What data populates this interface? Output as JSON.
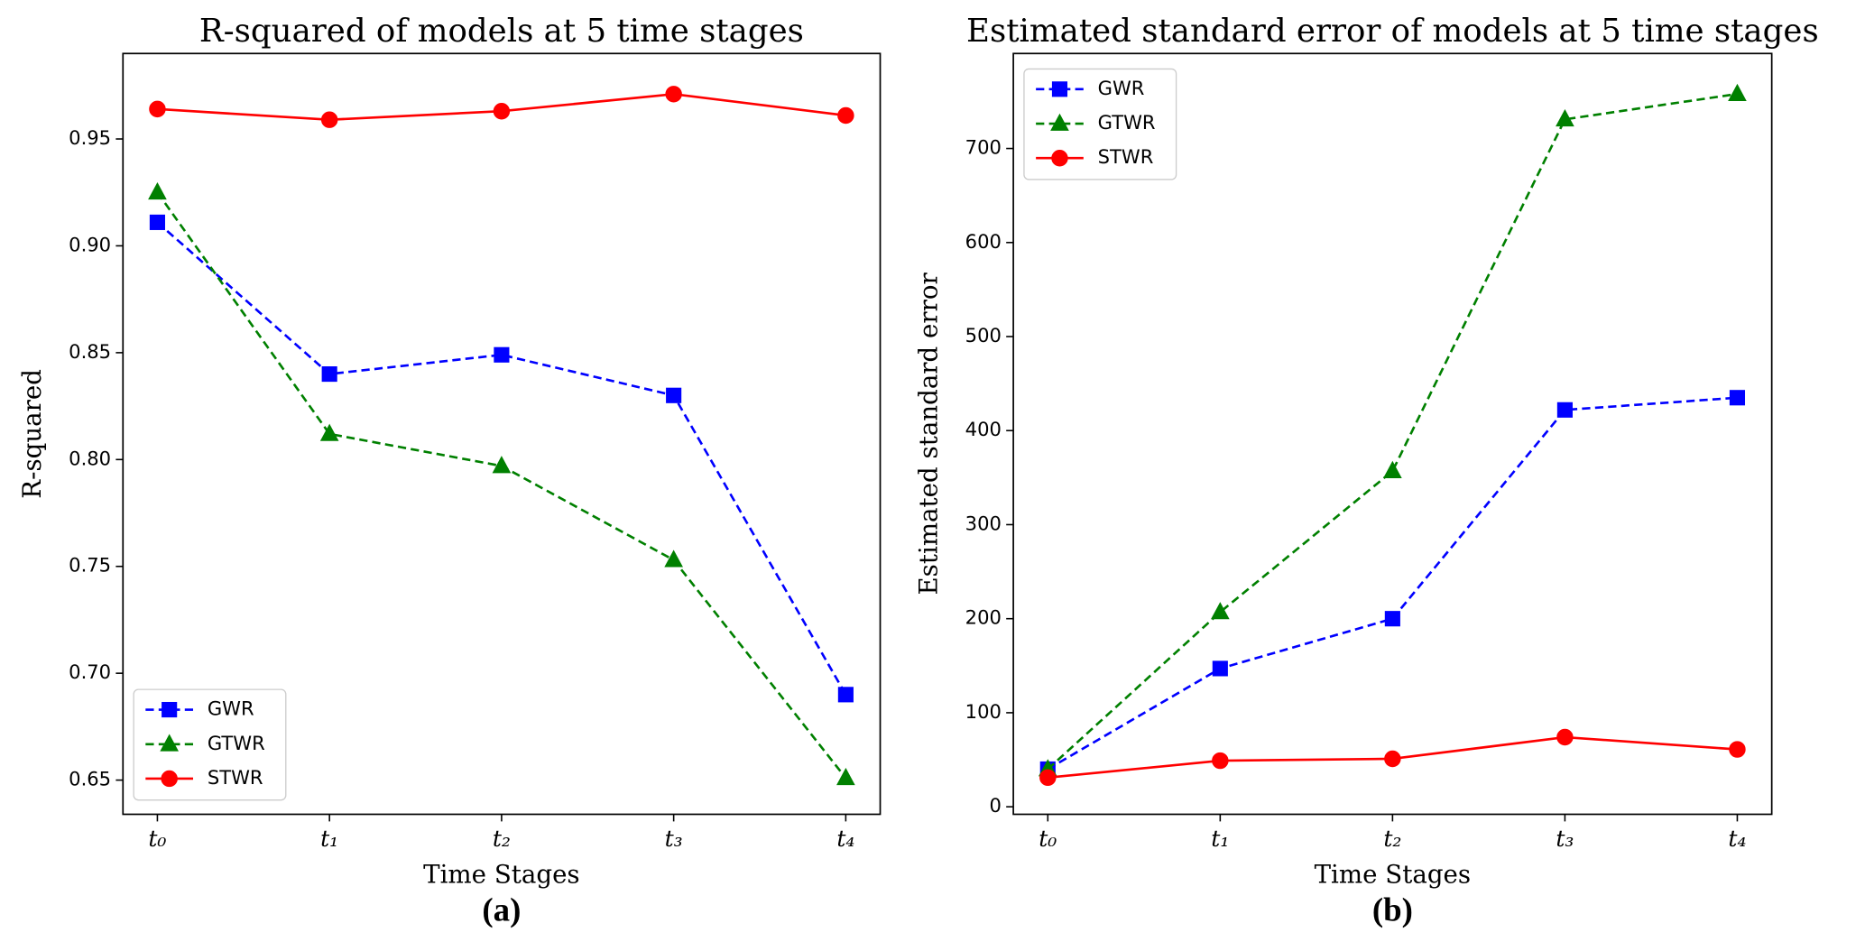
{
  "chart_data": [
    {
      "type": "line",
      "title": "R-squared of models at 5 time stages",
      "xlabel": "Time Stages",
      "ylabel": "R-squared",
      "caption": "(a)",
      "categories": [
        "t₀",
        "t₁",
        "t₂",
        "t₃",
        "t₄"
      ],
      "series": [
        {
          "name": "GWR",
          "color": "#0000ff",
          "linestyle": "dashed",
          "marker": "square",
          "values": [
            0.911,
            0.84,
            0.849,
            0.83,
            0.69
          ]
        },
        {
          "name": "GTWR",
          "color": "#008000",
          "linestyle": "dashed",
          "marker": "triangle",
          "values": [
            0.925,
            0.812,
            0.797,
            0.753,
            0.651
          ]
        },
        {
          "name": "STWR",
          "color": "#ff0000",
          "linestyle": "solid",
          "marker": "circle",
          "values": [
            0.964,
            0.959,
            0.963,
            0.971,
            0.961
          ]
        }
      ],
      "ylim": [
        0.634,
        0.99
      ],
      "yticks": [
        0.65,
        {
          "value": 0.7,
          "label": "0.70"
        },
        0.75,
        {
          "value": 0.8,
          "label": "0.80"
        },
        0.85,
        {
          "value": 0.9,
          "label": "0.90"
        },
        0.95
      ],
      "legend": "lower left"
    },
    {
      "type": "line",
      "title": "Estimated standard error of models at 5 time stages",
      "xlabel": "Time Stages",
      "ylabel": "Estimated standard error",
      "caption": "(b)",
      "categories": [
        "t₀",
        "t₁",
        "t₂",
        "t₃",
        "t₄"
      ],
      "series": [
        {
          "name": "GWR",
          "color": "#0000ff",
          "linestyle": "dashed",
          "marker": "square",
          "values": [
            40,
            147,
            200,
            422,
            435
          ]
        },
        {
          "name": "GTWR",
          "color": "#008000",
          "linestyle": "dashed",
          "marker": "triangle",
          "values": [
            40,
            207,
            357,
            731,
            758
          ]
        },
        {
          "name": "STWR",
          "color": "#ff0000",
          "linestyle": "solid",
          "marker": "circle",
          "values": [
            31,
            49,
            51,
            74,
            61
          ]
        }
      ],
      "ylim": [
        -8,
        801
      ],
      "yticks": [
        0,
        100,
        200,
        300,
        400,
        500,
        600,
        700
      ],
      "legend": "upper left"
    }
  ]
}
